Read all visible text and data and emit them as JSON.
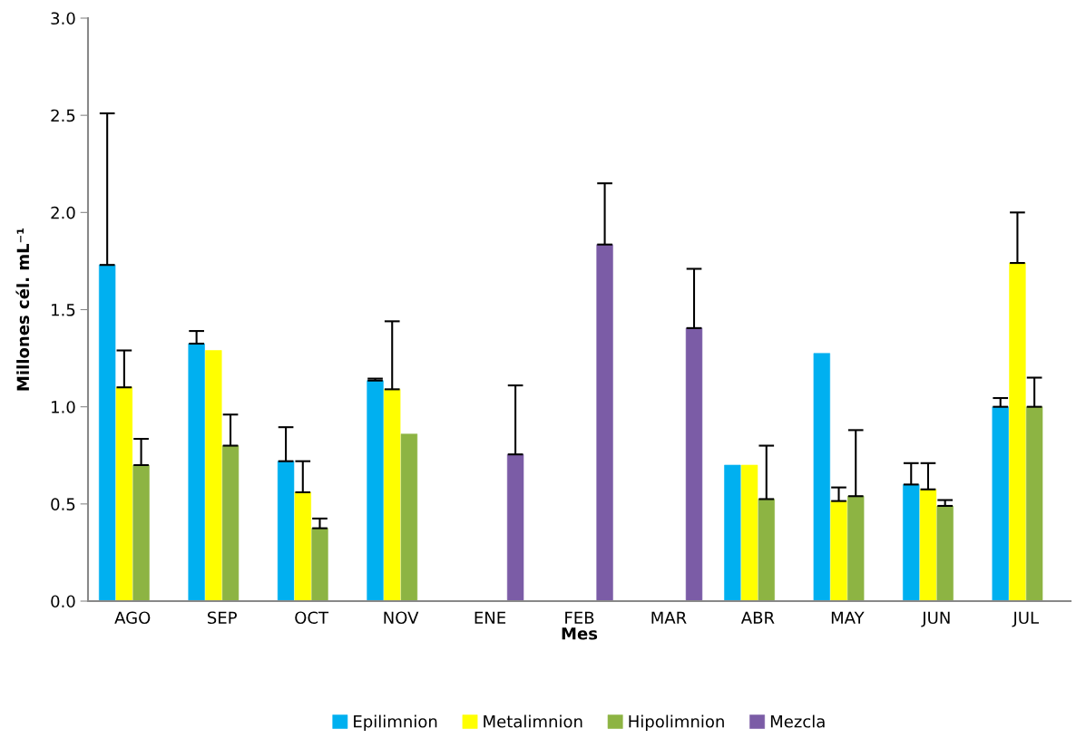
{
  "chart_data": {
    "type": "bar",
    "xlabel": "Mes",
    "ylabel": "Millones cél. mL⁻¹",
    "categories": [
      "AGO",
      "SEP",
      "OCT",
      "NOV",
      "ENE",
      "FEB",
      "MAR",
      "ABR",
      "MAY",
      "JUN",
      "JUL"
    ],
    "series": [
      {
        "name": "Epilimnion",
        "color": "#00b0f0",
        "values": [
          1.73,
          1.325,
          0.72,
          1.135,
          0,
          0,
          0,
          0.7,
          1.275,
          0.6,
          1.0
        ],
        "errors": [
          [
            1.73,
            2.51
          ],
          [
            1.325,
            1.39
          ],
          [
            0.72,
            0.895
          ],
          [
            1.135,
            1.145
          ],
          null,
          null,
          null,
          null,
          null,
          [
            0.6,
            0.71
          ],
          [
            1.0,
            1.045
          ]
        ]
      },
      {
        "name": "Metalimnion",
        "color": "#ffff00",
        "values": [
          1.1,
          1.29,
          0.56,
          1.09,
          0,
          0,
          0,
          0.7,
          0.515,
          0.575,
          1.74
        ],
        "errors": [
          [
            1.1,
            1.29
          ],
          null,
          [
            0.56,
            0.72
          ],
          [
            1.09,
            1.44
          ],
          null,
          null,
          null,
          null,
          [
            0.515,
            0.585
          ],
          [
            0.575,
            0.71
          ],
          [
            1.74,
            2.0
          ]
        ]
      },
      {
        "name": "Hipolimnion",
        "color": "#8db443",
        "values": [
          0.7,
          0.8,
          0.375,
          0.86,
          0,
          0,
          0,
          0.525,
          0.54,
          0.49,
          1.0
        ],
        "errors": [
          [
            0.7,
            0.835
          ],
          [
            0.8,
            0.96
          ],
          [
            0.375,
            0.425
          ],
          null,
          null,
          null,
          null,
          [
            0.525,
            0.8
          ],
          [
            0.54,
            0.88
          ],
          [
            0.49,
            0.52
          ],
          [
            1.0,
            1.15
          ]
        ]
      },
      {
        "name": "Mezcla",
        "color": "#7b5ca6",
        "values": [
          null,
          null,
          null,
          null,
          0.755,
          1.835,
          1.405,
          null,
          null,
          null,
          null
        ],
        "errors": [
          null,
          null,
          null,
          null,
          [
            0.755,
            1.11
          ],
          [
            1.835,
            2.15
          ],
          [
            1.405,
            1.71
          ],
          null,
          null,
          null,
          null
        ]
      }
    ],
    "ylim": [
      0,
      3.0
    ],
    "yticks": [
      {
        "value": 0,
        "label": "0.0"
      },
      {
        "value": 0.5,
        "label": "0.5"
      },
      {
        "value": 1.0,
        "label": "1.0"
      },
      {
        "value": 1.5,
        "label": "1.5"
      },
      {
        "value": 2.0,
        "label": "2.0"
      },
      {
        "value": 2.5,
        "label": "2.5"
      },
      {
        "value": 3.0,
        "label": "3.0"
      }
    ],
    "grid": false,
    "legend": "bottom"
  }
}
